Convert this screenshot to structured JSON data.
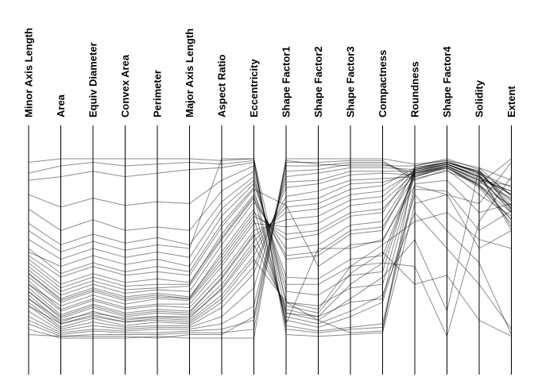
{
  "chart_data": {
    "type": "parallel-coordinates",
    "title": "",
    "axes": [
      "Minor Axis Length",
      "Area",
      "Equiv Diameter",
      "Convex Area",
      "Perimeter",
      "Major Axis Length",
      "Aspect Ratio",
      "Eccentricity",
      "Shape Factor1",
      "Shape Factor2",
      "Shape Factor3",
      "Compactness",
      "Roundness",
      "Shape Factor4",
      "Solidity",
      "Extent"
    ],
    "value_range": [
      0,
      1
    ],
    "line_color": "#000000",
    "series": [
      {
        "values": [
          0.92,
          0.96,
          0.98,
          0.96,
          0.97,
          0.98,
          0.97,
          0.99,
          0.05,
          0.03,
          0.05,
          0.06,
          0.83,
          0.82,
          0.6,
          0.71
        ]
      },
      {
        "values": [
          0.88,
          0.9,
          0.93,
          0.9,
          0.92,
          0.94,
          0.95,
          0.98,
          0.07,
          0.04,
          0.06,
          0.08,
          0.86,
          0.88,
          0.7,
          0.75
        ]
      },
      {
        "values": [
          0.8,
          0.73,
          0.78,
          0.74,
          0.76,
          0.75,
          0.88,
          0.96,
          0.14,
          0.12,
          0.2,
          0.22,
          0.92,
          0.95,
          0.85,
          0.66
        ]
      },
      {
        "values": [
          0.72,
          0.6,
          0.66,
          0.6,
          0.62,
          0.6,
          0.82,
          0.93,
          0.2,
          0.18,
          0.28,
          0.3,
          0.94,
          0.97,
          0.9,
          0.8
        ]
      },
      {
        "values": [
          0.64,
          0.52,
          0.58,
          0.53,
          0.56,
          0.52,
          0.76,
          0.9,
          0.26,
          0.24,
          0.35,
          0.37,
          0.95,
          0.98,
          0.93,
          0.72
        ]
      },
      {
        "values": [
          0.55,
          0.44,
          0.5,
          0.45,
          0.48,
          0.45,
          0.72,
          0.88,
          0.3,
          0.3,
          0.4,
          0.42,
          0.93,
          0.97,
          0.91,
          0.62
        ]
      },
      {
        "values": [
          0.48,
          0.4,
          0.46,
          0.41,
          0.44,
          0.4,
          0.68,
          0.86,
          0.34,
          0.33,
          0.44,
          0.46,
          0.92,
          0.96,
          0.88,
          0.85
        ]
      },
      {
        "values": [
          0.42,
          0.28,
          0.34,
          0.29,
          0.3,
          0.3,
          0.58,
          0.8,
          0.44,
          0.46,
          0.58,
          0.6,
          0.94,
          0.98,
          0.92,
          0.77
        ]
      },
      {
        "values": [
          0.4,
          0.26,
          0.32,
          0.27,
          0.28,
          0.29,
          0.55,
          0.78,
          0.46,
          0.48,
          0.6,
          0.62,
          0.9,
          0.96,
          0.85,
          0.7
        ]
      },
      {
        "values": [
          0.38,
          0.24,
          0.3,
          0.25,
          0.27,
          0.26,
          0.52,
          0.76,
          0.5,
          0.52,
          0.63,
          0.65,
          0.93,
          0.97,
          0.9,
          0.8
        ]
      },
      {
        "values": [
          0.36,
          0.22,
          0.28,
          0.23,
          0.25,
          0.23,
          0.46,
          0.7,
          0.55,
          0.58,
          0.68,
          0.7,
          0.95,
          0.98,
          0.93,
          0.74
        ]
      },
      {
        "values": [
          0.34,
          0.2,
          0.26,
          0.21,
          0.23,
          0.22,
          0.44,
          0.68,
          0.58,
          0.6,
          0.7,
          0.72,
          0.91,
          0.95,
          0.86,
          0.66
        ]
      },
      {
        "values": [
          0.32,
          0.16,
          0.22,
          0.17,
          0.19,
          0.19,
          0.4,
          0.64,
          0.62,
          0.64,
          0.74,
          0.76,
          0.92,
          0.97,
          0.89,
          0.82
        ]
      },
      {
        "values": [
          0.3,
          0.15,
          0.21,
          0.16,
          0.18,
          0.17,
          0.36,
          0.6,
          0.66,
          0.68,
          0.77,
          0.79,
          0.94,
          0.98,
          0.92,
          0.76
        ]
      },
      {
        "values": [
          0.28,
          0.13,
          0.19,
          0.14,
          0.16,
          0.15,
          0.33,
          0.57,
          0.7,
          0.72,
          0.8,
          0.82,
          0.93,
          0.97,
          0.9,
          0.7
        ]
      },
      {
        "values": [
          0.26,
          0.11,
          0.17,
          0.12,
          0.14,
          0.13,
          0.3,
          0.54,
          0.73,
          0.75,
          0.83,
          0.85,
          0.95,
          0.98,
          0.93,
          0.8
        ]
      },
      {
        "values": [
          0.24,
          0.09,
          0.15,
          0.1,
          0.12,
          0.12,
          0.27,
          0.5,
          0.76,
          0.78,
          0.86,
          0.87,
          0.92,
          0.96,
          0.88,
          0.73
        ]
      },
      {
        "values": [
          0.22,
          0.08,
          0.13,
          0.09,
          0.11,
          0.1,
          0.24,
          0.46,
          0.79,
          0.82,
          0.88,
          0.89,
          0.9,
          0.95,
          0.84,
          0.64
        ]
      },
      {
        "values": [
          0.2,
          0.06,
          0.11,
          0.07,
          0.09,
          0.08,
          0.2,
          0.4,
          0.84,
          0.86,
          0.91,
          0.92,
          0.91,
          0.96,
          0.87,
          0.78
        ]
      },
      {
        "values": [
          0.18,
          0.05,
          0.09,
          0.06,
          0.07,
          0.07,
          0.17,
          0.36,
          0.87,
          0.88,
          0.93,
          0.93,
          0.93,
          0.97,
          0.9,
          0.71
        ]
      },
      {
        "values": [
          0.15,
          0.04,
          0.07,
          0.05,
          0.06,
          0.06,
          0.12,
          0.28,
          0.9,
          0.92,
          0.95,
          0.95,
          0.94,
          0.98,
          0.92,
          0.6
        ]
      },
      {
        "values": [
          0.12,
          0.03,
          0.05,
          0.04,
          0.05,
          0.05,
          0.08,
          0.18,
          0.93,
          0.94,
          0.97,
          0.97,
          0.92,
          0.96,
          0.88,
          0.82
        ]
      },
      {
        "values": [
          0.1,
          0.02,
          0.04,
          0.03,
          0.03,
          0.04,
          0.05,
          0.1,
          0.96,
          0.96,
          0.98,
          0.98,
          0.9,
          0.95,
          0.85,
          0.74
        ]
      },
      {
        "values": [
          0.08,
          0.01,
          0.02,
          0.02,
          0.02,
          0.03,
          0.03,
          0.05,
          0.98,
          0.98,
          0.99,
          0.99,
          0.88,
          0.94,
          0.8,
          0.68
        ]
      },
      {
        "values": [
          0.44,
          0.3,
          0.36,
          0.31,
          0.33,
          0.31,
          0.56,
          0.79,
          0.1,
          0.06,
          0.12,
          0.2,
          0.8,
          0.6,
          0.42,
          0.02
        ]
      },
      {
        "values": [
          0.36,
          0.21,
          0.27,
          0.22,
          0.24,
          0.22,
          0.48,
          0.72,
          0.12,
          0.08,
          0.15,
          0.24,
          0.7,
          0.5,
          0.3,
          0.05
        ]
      },
      {
        "values": [
          0.3,
          0.18,
          0.24,
          0.19,
          0.22,
          0.21,
          0.42,
          0.66,
          0.14,
          0.1,
          0.22,
          0.34,
          0.55,
          0.15,
          0.95,
          0.88
        ]
      },
      {
        "values": [
          0.26,
          0.12,
          0.18,
          0.13,
          0.15,
          0.14,
          0.34,
          0.58,
          0.16,
          0.12,
          0.3,
          0.42,
          0.4,
          0.01,
          0.65,
          0.9
        ]
      },
      {
        "values": [
          0.22,
          0.1,
          0.14,
          0.11,
          0.12,
          0.11,
          0.28,
          0.52,
          0.18,
          0.14,
          0.36,
          0.48,
          0.3,
          0.35,
          0.1,
          0.01
        ]
      },
      {
        "values": [
          0.18,
          0.08,
          0.12,
          0.09,
          0.1,
          0.09,
          0.22,
          0.44,
          0.2,
          0.16,
          0.4,
          0.52,
          0.65,
          0.7,
          0.55,
          0.5
        ]
      },
      {
        "values": [
          0.98,
          1.0,
          1.0,
          1.0,
          1.0,
          1.0,
          0.99,
          1.0,
          0.02,
          0.01,
          0.02,
          0.03,
          0.75,
          0.8,
          0.5,
          0.6
        ]
      },
      {
        "values": [
          0.6,
          0.48,
          0.54,
          0.49,
          0.52,
          0.5,
          1.0,
          1.0,
          0.2,
          0.1,
          0.03,
          0.04,
          0.96,
          0.99,
          0.92,
          0.84
        ]
      },
      {
        "values": [
          0.05,
          0.0,
          0.0,
          0.0,
          0.01,
          0.0,
          0.0,
          0.0,
          1.0,
          1.0,
          1.0,
          1.0,
          0.97,
          0.99,
          0.95,
          0.79
        ]
      },
      {
        "values": [
          0.02,
          0.01,
          0.01,
          0.01,
          0.0,
          0.02,
          0.02,
          0.12,
          0.99,
          0.97,
          0.96,
          0.96,
          0.96,
          1.0,
          0.94,
          0.72
        ]
      },
      {
        "values": [
          0.5,
          0.36,
          0.42,
          0.37,
          0.4,
          0.37,
          0.64,
          0.84,
          0.08,
          0.5,
          0.5,
          0.55,
          0.85,
          0.8,
          0.75,
          0.98
        ]
      },
      {
        "values": [
          0.46,
          0.34,
          0.4,
          0.35,
          0.37,
          0.35,
          0.62,
          0.83,
          0.74,
          0.4,
          0.52,
          0.54,
          0.89,
          0.93,
          0.86,
          1.0
        ]
      }
    ]
  }
}
